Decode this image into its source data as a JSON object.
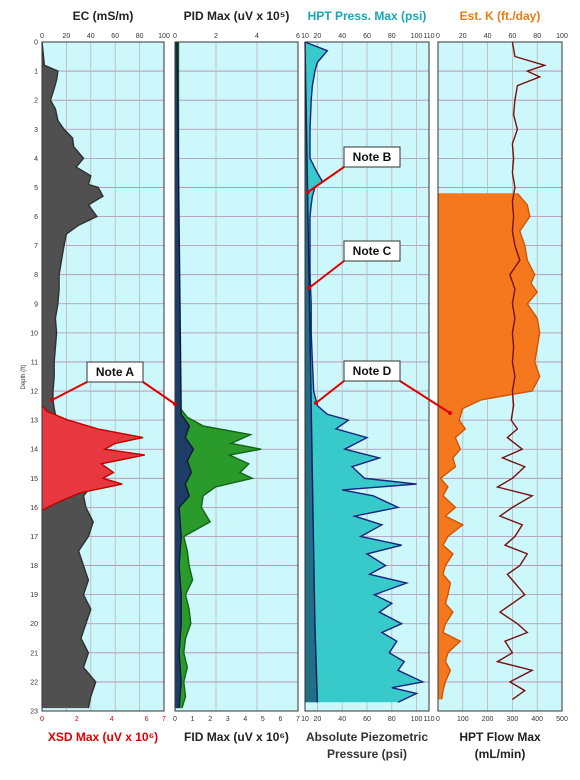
{
  "chart_data": {
    "type": "area",
    "depth_axis": {
      "label": "Depth (ft)",
      "min": 0,
      "max": 23,
      "ticks": [
        0,
        1,
        2,
        3,
        4,
        5,
        6,
        7,
        8,
        9,
        10,
        11,
        12,
        13,
        14,
        15,
        16,
        17,
        18,
        19,
        20,
        21,
        22,
        23
      ]
    },
    "notes": [
      {
        "label": "Note A",
        "depth": 12.6
      },
      {
        "label": "Note B",
        "depth": 5.2
      },
      {
        "label": "Note C",
        "depth": 8.6
      },
      {
        "label": "Note D",
        "depth": 12.2
      }
    ],
    "tracks": [
      {
        "id": "t1",
        "top_title": "EC (mS/m)",
        "top_color": "#222222",
        "top_range": [
          0,
          100
        ],
        "top_ticks": [
          0,
          20,
          40,
          60,
          80,
          100
        ],
        "bottom_title": [
          "XSD Max (uV x 10⁶)"
        ],
        "bottom_color": "#e00000",
        "bottom_range": [
          0,
          7
        ],
        "bottom_ticks": [
          0,
          2,
          4,
          6,
          7
        ],
        "series": [
          {
            "name": "EC",
            "axis": "top",
            "fill": "#505050",
            "stroke": "#303030",
            "depth": [
              0,
              0.8,
              1,
              1.3,
              1.6,
              2,
              2.3,
              2.7,
              3,
              3.3,
              3.6,
              4,
              4.3,
              4.6,
              4.9,
              5,
              5.3,
              5.6,
              6,
              6.3,
              6.6,
              7,
              7.5,
              8,
              8.5,
              9,
              9.5,
              10,
              10.5,
              11,
              11.5,
              12,
              12.3,
              12.6,
              13,
              13.5,
              14,
              14.5,
              15,
              15.3,
              15.6,
              16,
              16.5,
              17,
              17.5,
              18,
              18.5,
              19,
              19.5,
              20,
              20.5,
              21,
              21.5,
              22,
              22.5,
              22.9
            ],
            "values": [
              0,
              2,
              13,
              12,
              10,
              7,
              11,
              13,
              18,
              25,
              26,
              34,
              28,
              40,
              38,
              46,
              50,
              38,
              45,
              30,
              20,
              18,
              16,
              14,
              14,
              13,
              11,
              12,
              11,
              10,
              10,
              9,
              9,
              10,
              12,
              16,
              22,
              28,
              26,
              40,
              34,
              36,
              42,
              38,
              30,
              34,
              38,
              34,
              40,
              36,
              32,
              38,
              34,
              44,
              40,
              38
            ]
          },
          {
            "name": "XSD Max",
            "axis": "bottom",
            "fill": "#e8383f",
            "stroke": "#c00000",
            "depth": [
              12.5,
              12.7,
              13,
              13.3,
              13.6,
              13.8,
              14,
              14.2,
              14.5,
              14.8,
              15,
              15.2,
              15.5,
              15.8,
              16.1
            ],
            "values": [
              0,
              0.3,
              1.5,
              3.2,
              5.8,
              4.2,
              3.6,
              5.9,
              3.4,
              4.1,
              3.5,
              4.6,
              2.2,
              1.0,
              0
            ]
          }
        ]
      },
      {
        "id": "t2",
        "top_title": "PID Max (uV x 10⁵)",
        "top_color": "#222222",
        "top_range": [
          0,
          6
        ],
        "top_ticks": [
          0,
          2,
          4,
          6
        ],
        "bottom_title": [
          "FID Max (uV x 10⁶)"
        ],
        "bottom_color": "#222222",
        "bottom_range": [
          0,
          7
        ],
        "bottom_ticks": [
          0,
          1,
          2,
          3,
          4,
          5,
          6,
          7
        ],
        "series": [
          {
            "name": "FID Max",
            "axis": "bottom",
            "fill": "#2a9a2a",
            "stroke": "#146414",
            "depth": [
              0,
              12,
              12.6,
              12.9,
              13.2,
              13.5,
              13.8,
              14,
              14.2,
              14.5,
              14.8,
              15,
              15.3,
              15.6,
              16,
              16.5,
              17,
              17.5,
              18,
              18.5,
              19,
              19.5,
              20,
              20.5,
              21,
              21.5,
              22,
              22.5,
              22.9
            ],
            "values": [
              0.2,
              0.2,
              0.3,
              0.7,
              1.6,
              4.3,
              3.2,
              4.9,
              3.1,
              4.2,
              3.7,
              4.4,
              2.3,
              1.6,
              1.5,
              2.0,
              0.5,
              0.7,
              0.8,
              1.0,
              0.6,
              0.8,
              0.9,
              0.6,
              0.5,
              0.7,
              0.5,
              0.6,
              0.4
            ]
          },
          {
            "name": "PID Max",
            "axis": "top",
            "fill": "#1d3d66",
            "stroke": "#0a1a3a",
            "depth": [
              0,
              12.8,
              13.2,
              13.6,
              14,
              14.4,
              14.8,
              15.2,
              15.6,
              16,
              17,
              18,
              19,
              20,
              21,
              22,
              22.9
            ],
            "values": [
              0.1,
              0.3,
              0.7,
              0.5,
              0.9,
              0.6,
              0.8,
              0.5,
              0.7,
              0.2,
              0.3,
              0.2,
              0.3,
              0.3,
              0.2,
              0.3,
              0.2
            ]
          }
        ]
      },
      {
        "id": "t3",
        "top_title": "HPT Press. Max (psi)",
        "top_color": "#16a6b6",
        "top_range": [
          10,
          110
        ],
        "top_ticks": [
          10,
          20,
          40,
          60,
          80,
          100,
          110
        ],
        "bottom_title": [
          "Absolute Piezometric",
          "Pressure (psi)"
        ],
        "bottom_color": "#333333",
        "bottom_range": [
          10,
          110
        ],
        "bottom_ticks": [
          10,
          20,
          40,
          60,
          80,
          100,
          110
        ],
        "series": [
          {
            "name": "HPT Press. Max",
            "axis": "top",
            "fill": "#38c9cb",
            "stroke": "#1a237e",
            "depth": [
              0,
              0.3,
              0.7,
              1,
              1.5,
              2,
              3,
              4,
              4.5,
              4.8,
              5,
              5.3,
              5.6,
              6,
              7,
              8,
              9,
              10,
              11,
              12,
              12.5,
              12.8,
              13,
              13.3,
              13.6,
              14,
              14.3,
              14.6,
              15,
              15.2,
              15.4,
              15.6,
              16,
              16.3,
              16.6,
              17,
              17.3,
              17.6,
              18,
              18.3,
              18.6,
              19,
              19.3,
              19.6,
              20,
              20.3,
              20.6,
              21,
              21.3,
              21.6,
              22,
              22.2,
              22.4,
              22.7
            ],
            "values": [
              10,
              28,
              20,
              18,
              16,
              15,
              14,
              14,
              20,
              24,
              18,
              16,
              15,
              14,
              14,
              14,
              15,
              15,
              16,
              17,
              20,
              28,
              45,
              35,
              60,
              42,
              70,
              48,
              58,
              100,
              40,
              65,
              85,
              50,
              72,
              55,
              88,
              60,
              75,
              62,
              92,
              66,
              80,
              70,
              88,
              72,
              84,
              78,
              90,
              85,
              105,
              80,
              100,
              85
            ]
          },
          {
            "name": "Absolute Piezometric Pressure",
            "axis": "bottom",
            "fill": "#1f6f86",
            "stroke": "#0d1b5a",
            "depth": [
              0,
              5,
              10,
              15,
              20,
              22.7
            ],
            "values": [
              10,
              12,
              14,
              16,
              18,
              20
            ]
          }
        ]
      },
      {
        "id": "t4",
        "top_title": "Est. K (ft./day)",
        "top_color": "#e87b14",
        "top_range": [
          0,
          100
        ],
        "top_ticks": [
          0,
          20,
          40,
          60,
          80,
          100
        ],
        "bottom_title": [
          "HPT Flow Max",
          "(mL/min)"
        ],
        "bottom_color": "#222222",
        "bottom_range": [
          0,
          500
        ],
        "bottom_ticks": [
          0,
          100,
          200,
          300,
          400,
          500
        ],
        "series": [
          {
            "name": "Est. K",
            "axis": "top",
            "fill": "#f5781e",
            "stroke": "#d35400",
            "depth": [
              5.2,
              5.6,
              6,
              6.5,
              7,
              7.5,
              8,
              8.3,
              8.6,
              9,
              9.5,
              10,
              10.5,
              11,
              11.5,
              12,
              12.3,
              12.6,
              13,
              13.3,
              13.6,
              14,
              14.3,
              14.6,
              15,
              15.3,
              15.6,
              16,
              16.3,
              16.6,
              17,
              17.3,
              17.6,
              18,
              18.3,
              18.6,
              19,
              19.3,
              19.6,
              20,
              20.3,
              20.6,
              21,
              21.3,
              21.6,
              22,
              22.3,
              22.6
            ],
            "values": [
              64,
              72,
              74,
              66,
              70,
              72,
              78,
              75,
              80,
              72,
              80,
              82,
              80,
              78,
              82,
              76,
              35,
              20,
              17,
              22,
              14,
              18,
              12,
              14,
              2,
              8,
              4,
              14,
              6,
              20,
              8,
              4,
              12,
              6,
              4,
              10,
              8,
              6,
              12,
              6,
              4,
              18,
              8,
              6,
              10,
              6,
              4,
              3
            ]
          },
          {
            "name": "HPT Flow Max",
            "axis": "bottom",
            "fill": "none",
            "stroke": "#7a1010",
            "depth": [
              0,
              0.5,
              0.8,
              1,
              1.2,
              1.5,
              2,
              2.5,
              3,
              3.5,
              4,
              4.5,
              5,
              5.5,
              6,
              6.5,
              7,
              7.5,
              8,
              8.5,
              9,
              9.5,
              10,
              10.5,
              11,
              11.5,
              12,
              12.5,
              13,
              13.3,
              13.6,
              14,
              14.3,
              14.6,
              15,
              15.3,
              15.6,
              16,
              16.3,
              16.6,
              17,
              17.3,
              17.6,
              18,
              18.3,
              18.6,
              19,
              19.3,
              19.6,
              20,
              20.3,
              20.6,
              21,
              21.3,
              21.6,
              22,
              22.3,
              22.6
            ],
            "values": [
              300,
              310,
              430,
              360,
              410,
              320,
              310,
              305,
              320,
              300,
              305,
              300,
              310,
              300,
              305,
              300,
              310,
              330,
              290,
              310,
              300,
              310,
              300,
              305,
              300,
              310,
              300,
              305,
              295,
              320,
              280,
              340,
              260,
              350,
              300,
              240,
              380,
              300,
              250,
              340,
              310,
              270,
              360,
              330,
              280,
              310,
              350,
              300,
              250,
              320,
              360,
              270,
              300,
              240,
              380,
              290,
              350,
              300
            ]
          }
        ]
      }
    ]
  }
}
